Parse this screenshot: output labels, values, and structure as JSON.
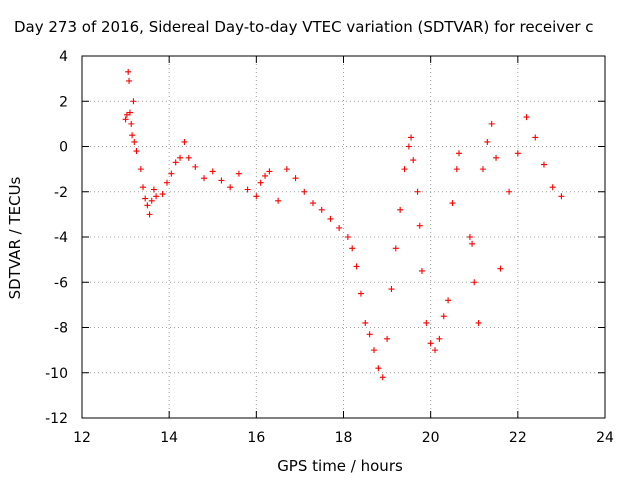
{
  "chart_data": {
    "type": "scatter",
    "title": "Day 273 of 2016, Sidereal Day-to-day VTEC variation (SDTVAR) for receiver c",
    "xlabel": "GPS time / hours",
    "ylabel": "SDTVAR / TECUs",
    "xlim": [
      12,
      24
    ],
    "ylim": [
      -12,
      4
    ],
    "xticks": [
      12,
      14,
      16,
      18,
      20,
      22,
      24
    ],
    "yticks": [
      -12,
      -10,
      -8,
      -6,
      -4,
      -2,
      0,
      2,
      4
    ],
    "xtick_labels": [
      "12",
      "14",
      "16",
      "18",
      "20",
      "22",
      "24"
    ],
    "ytick_labels": [
      "-12",
      "-10",
      "-8",
      "-6",
      "-4",
      "-2",
      "0",
      "2",
      "4"
    ],
    "grid": true,
    "marker": "+",
    "color": "#ff0000",
    "series": [
      {
        "x": [
          13.0,
          13.03,
          13.06,
          13.08,
          13.1,
          13.13,
          13.15,
          13.18,
          13.2,
          13.25,
          13.35,
          13.4,
          13.45,
          13.5,
          13.55,
          13.6,
          13.65,
          13.7,
          13.85,
          13.95,
          14.05,
          14.15,
          14.25,
          14.35,
          14.45,
          14.6,
          14.8,
          15.0,
          15.2,
          15.4,
          15.6,
          15.8,
          16.0,
          16.1,
          16.2,
          16.3,
          16.5,
          16.7,
          16.9,
          17.1,
          17.3,
          17.5,
          17.7,
          17.9,
          18.1,
          18.2,
          18.3,
          18.4,
          18.5,
          18.6,
          18.7,
          18.8,
          18.9,
          19.0,
          19.1,
          19.2,
          19.3,
          19.4,
          19.5,
          19.55,
          19.6,
          19.7,
          19.75,
          19.8,
          19.9,
          20.0,
          20.1,
          20.2,
          20.3,
          20.4,
          20.5,
          20.6,
          20.65,
          20.9,
          20.95,
          21.0,
          21.1,
          21.2,
          21.3,
          21.4,
          21.5,
          21.6,
          21.8,
          22.0,
          22.2,
          22.4,
          22.6,
          22.8,
          23.0
        ],
        "y": [
          1.2,
          1.4,
          3.3,
          2.9,
          1.5,
          1.0,
          0.5,
          2.0,
          0.2,
          -0.2,
          -1.0,
          -1.8,
          -2.3,
          -2.6,
          -3.0,
          -2.4,
          -1.9,
          -2.2,
          -2.1,
          -1.6,
          -1.2,
          -0.7,
          -0.5,
          0.2,
          -0.5,
          -0.9,
          -1.4,
          -1.1,
          -1.5,
          -1.8,
          -1.2,
          -1.9,
          -2.2,
          -1.6,
          -1.3,
          -1.1,
          -2.4,
          -1.0,
          -1.4,
          -2.0,
          -2.5,
          -2.8,
          -3.2,
          -3.6,
          -4.0,
          -4.5,
          -5.3,
          -6.5,
          -7.8,
          -8.3,
          -9.0,
          -9.8,
          -10.2,
          -8.5,
          -6.3,
          -4.5,
          -2.8,
          -1.0,
          0.0,
          0.4,
          -0.6,
          -2.0,
          -3.5,
          -5.5,
          -7.8,
          -8.7,
          -9.0,
          -8.5,
          -7.5,
          -6.8,
          -2.5,
          -1.0,
          -0.3,
          -4.0,
          -4.3,
          -6.0,
          -7.8,
          -1.0,
          0.2,
          1.0,
          -0.5,
          -5.4,
          -2.0,
          -0.3,
          1.3,
          0.4,
          -0.8,
          -1.8,
          -2.2
        ]
      }
    ]
  }
}
